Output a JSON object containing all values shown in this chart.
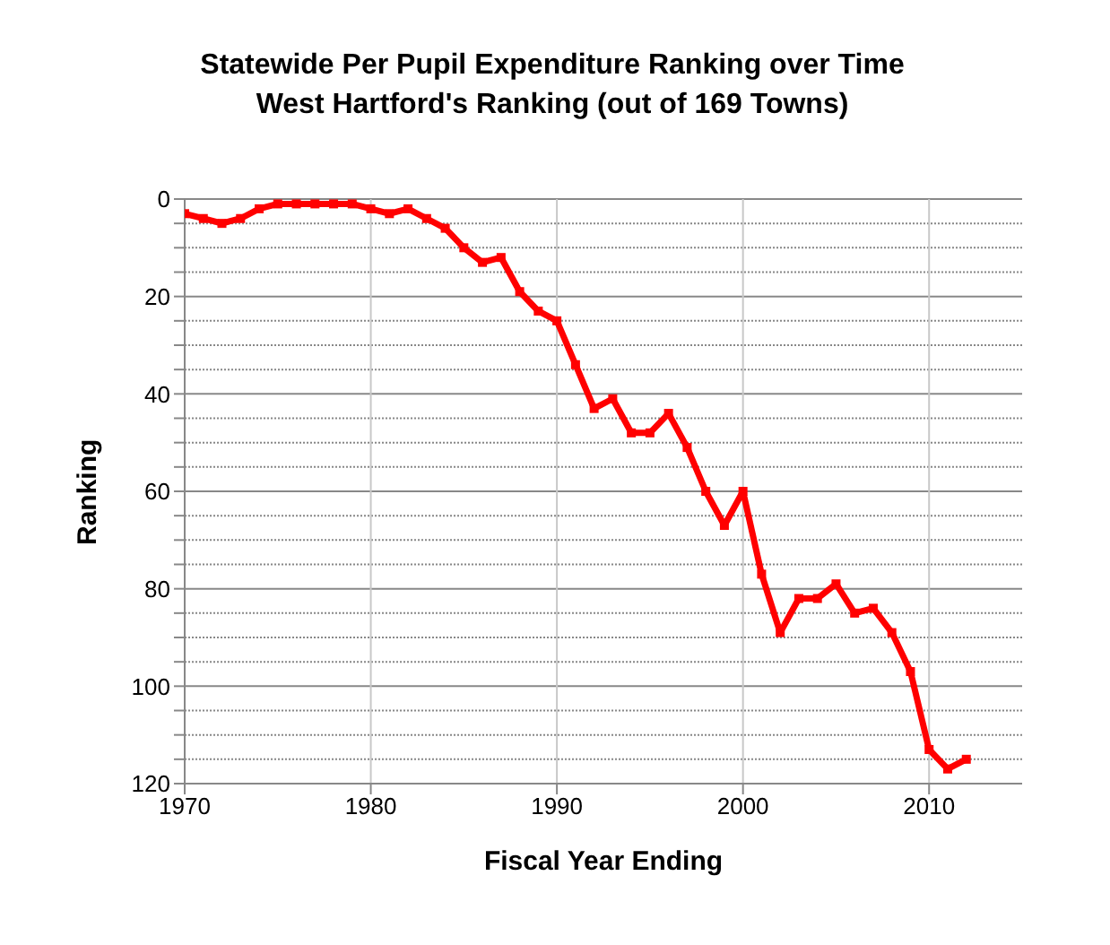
{
  "chart_data": {
    "type": "line",
    "title": "Statewide Per Pupil Expenditure Ranking over Time",
    "subtitle": "West Hartford's Ranking (out of 169 Towns)",
    "xlabel": "Fiscal Year Ending",
    "ylabel": "Ranking",
    "x": [
      1970,
      1971,
      1972,
      1973,
      1974,
      1975,
      1976,
      1977,
      1978,
      1979,
      1980,
      1981,
      1982,
      1983,
      1984,
      1985,
      1986,
      1987,
      1988,
      1989,
      1990,
      1991,
      1992,
      1993,
      1994,
      1995,
      1996,
      1997,
      1998,
      1999,
      2000,
      2001,
      2002,
      2003,
      2004,
      2005,
      2006,
      2007,
      2008,
      2009,
      2010,
      2011,
      2012
    ],
    "series": [
      {
        "color": "#ff0000",
        "values": [
          3,
          4,
          5,
          4,
          2,
          1,
          1,
          1,
          1,
          1,
          2,
          3,
          2,
          4,
          6,
          10,
          13,
          12,
          19,
          23,
          25,
          34,
          43,
          41,
          48,
          48,
          44,
          51,
          60,
          67,
          60,
          77,
          89,
          82,
          82,
          79,
          85,
          84,
          89,
          97,
          113,
          117,
          115
        ]
      }
    ],
    "xlim": [
      1970,
      2015
    ],
    "xticks": [
      1970,
      1980,
      1990,
      2000,
      2010
    ],
    "ylim": [
      120,
      0
    ],
    "yticks": [
      0,
      {
        "value": 5,
        "label": null
      },
      {
        "value": 10,
        "label": null
      },
      {
        "value": 15,
        "label": null
      },
      20,
      {
        "value": 25,
        "label": null
      },
      {
        "value": 30,
        "label": null
      },
      {
        "value": 35,
        "label": null
      },
      40,
      {
        "value": 45,
        "label": null
      },
      {
        "value": 50,
        "label": null
      },
      {
        "value": 55,
        "label": null
      },
      60,
      {
        "value": 65,
        "label": null
      },
      {
        "value": 70,
        "label": null
      },
      {
        "value": 75,
        "label": null
      },
      80,
      {
        "value": 85,
        "label": null
      },
      {
        "value": 90,
        "label": null
      },
      {
        "value": 95,
        "label": null
      },
      100,
      {
        "value": 105,
        "label": null
      },
      {
        "value": 110,
        "label": null
      },
      {
        "value": 115,
        "label": null
      },
      120
    ],
    "grid": true,
    "legend": false,
    "marker": "square",
    "line_style": "solid"
  }
}
